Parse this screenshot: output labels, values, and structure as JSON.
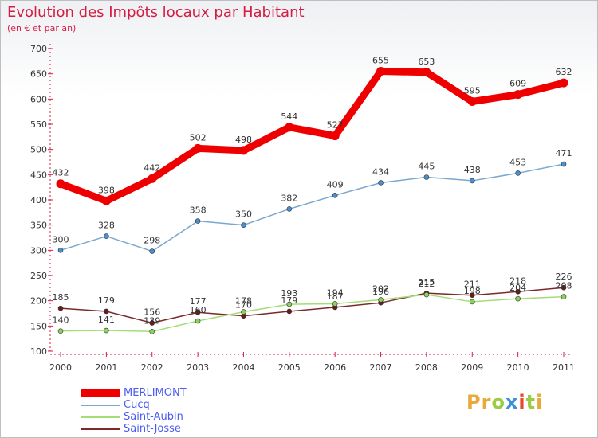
{
  "header": {
    "title": "Evolution des Impôts locaux par Habitant",
    "subtitle": "(en € et par an)"
  },
  "logo": {
    "text": "Proxiti",
    "letters": [
      {
        "ch": "P",
        "color": "#e9a83a"
      },
      {
        "ch": "r",
        "color": "#e9a83a"
      },
      {
        "ch": "o",
        "color": "#9acd45"
      },
      {
        "ch": "x",
        "color": "#3d8fd6"
      },
      {
        "ch": "i",
        "color": "#e44b2e"
      },
      {
        "ch": "t",
        "color": "#9acd45"
      },
      {
        "ch": "i",
        "color": "#e9a83a"
      }
    ]
  },
  "chart_data": {
    "type": "line",
    "title": "Evolution des Impôts locaux par Habitant",
    "subtitle": "(en € et par an)",
    "x": [
      "2000",
      "2001",
      "2002",
      "2003",
      "2004",
      "2005",
      "2006",
      "2007",
      "2008",
      "2009",
      "2010",
      "2011"
    ],
    "ylim": [
      100,
      700
    ],
    "yticks": [
      100,
      150,
      200,
      250,
      300,
      350,
      400,
      450,
      500,
      550,
      600,
      650,
      700
    ],
    "grid": false,
    "legend_position": "bottom-left",
    "series": [
      {
        "name": "MERLIMONT",
        "color": "#ee0000",
        "marker_color": "#ee0000",
        "width": "thick",
        "values": [
          432,
          398,
          442,
          502,
          498,
          544,
          527,
          655,
          653,
          595,
          609,
          632
        ]
      },
      {
        "name": "Cucq",
        "color": "#7aa7cf",
        "marker_color": "#4a90d0",
        "width": "thin",
        "values": [
          300,
          328,
          298,
          358,
          350,
          382,
          409,
          434,
          445,
          438,
          453,
          471
        ]
      },
      {
        "name": "Saint-Aubin",
        "color": "#a4dc78",
        "marker_color": "#8ad35a",
        "width": "thin",
        "values": [
          140,
          141,
          139,
          160,
          178,
          193,
          194,
          202,
          212,
          198,
          204,
          208
        ]
      },
      {
        "name": "Saint-Josse",
        "color": "#7a2a2a",
        "marker_color": "#6b1a1a",
        "width": "thin",
        "values": [
          185,
          179,
          156,
          177,
          170,
          179,
          187,
          196,
          215,
          211,
          218,
          226
        ]
      }
    ]
  }
}
